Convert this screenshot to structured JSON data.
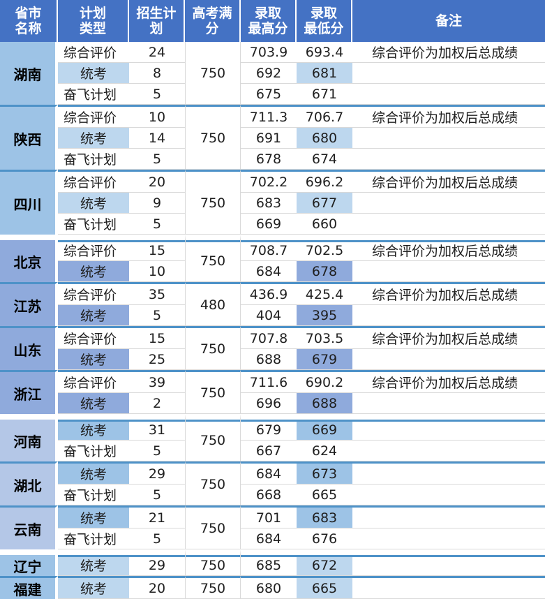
{
  "headers": {
    "province": [
      "省市",
      "名称"
    ],
    "plan_type": [
      "计划",
      "类型"
    ],
    "quota": [
      "招生计",
      "划"
    ],
    "full_score": [
      "高考满",
      "分"
    ],
    "max": [
      "录取",
      "最高分"
    ],
    "min": [
      "录取",
      "最低分"
    ],
    "note": "备注"
  },
  "rows": [
    {
      "province": "湖南",
      "group": "g-blue",
      "entries": [
        {
          "type": "综合评价",
          "quota": "24",
          "max": "703.9",
          "min": "693.4",
          "note": "综合评价为加权后总成绩",
          "hl": false
        },
        {
          "type": "统考",
          "quota": "8",
          "max": "692",
          "min": "681",
          "note": "",
          "hl": true
        },
        {
          "type": "奋飞计划",
          "quota": "5",
          "max": "675",
          "min": "671",
          "note": "",
          "hl": false
        }
      ],
      "full": "750"
    },
    {
      "province": "陕西",
      "group": "g-blue",
      "entries": [
        {
          "type": "综合评价",
          "quota": "10",
          "max": "711.3",
          "min": "706.7",
          "note": "综合评价为加权后总成绩",
          "hl": false
        },
        {
          "type": "统考",
          "quota": "14",
          "max": "691",
          "min": "680",
          "note": "",
          "hl": true
        },
        {
          "type": "奋飞计划",
          "quota": "5",
          "max": "678",
          "min": "674",
          "note": "",
          "hl": false
        }
      ],
      "full": "750"
    },
    {
      "province": "四川",
      "group": "g-blue",
      "entries": [
        {
          "type": "综合评价",
          "quota": "20",
          "max": "702.2",
          "min": "696.2",
          "note": "综合评价为加权后总成绩",
          "hl": false
        },
        {
          "type": "统考",
          "quota": "9",
          "max": "683",
          "min": "677",
          "note": "",
          "hl": true
        },
        {
          "type": "奋飞计划",
          "quota": "5",
          "max": "669",
          "min": "660",
          "note": "",
          "hl": false
        }
      ],
      "full": "750"
    },
    {
      "province": "北京",
      "group": "g-dark",
      "entries": [
        {
          "type": "综合评价",
          "quota": "15",
          "max": "708.7",
          "min": "702.5",
          "note": "综合评价为加权后总成绩",
          "hl": false
        },
        {
          "type": "统考",
          "quota": "10",
          "max": "684",
          "min": "678",
          "note": "",
          "hl": true
        }
      ],
      "full": "750"
    },
    {
      "province": "江苏",
      "group": "g-dark",
      "entries": [
        {
          "type": "综合评价",
          "quota": "35",
          "max": "436.9",
          "min": "425.4",
          "note": "综合评价为加权后总成绩",
          "hl": false
        },
        {
          "type": "统考",
          "quota": "5",
          "max": "404",
          "min": "395",
          "note": "",
          "hl": true
        }
      ],
      "full": "480"
    },
    {
      "province": "山东",
      "group": "g-dark",
      "entries": [
        {
          "type": "综合评价",
          "quota": "15",
          "max": "707.8",
          "min": "703.5",
          "note": "综合评价为加权后总成绩",
          "hl": false
        },
        {
          "type": "统考",
          "quota": "25",
          "max": "688",
          "min": "679",
          "note": "",
          "hl": true
        }
      ],
      "full": "750"
    },
    {
      "province": "浙江",
      "group": "g-dark",
      "entries": [
        {
          "type": "综合评价",
          "quota": "39",
          "max": "711.6",
          "min": "690.2",
          "note": "综合评价为加权后总成绩",
          "hl": false
        },
        {
          "type": "统考",
          "quota": "2",
          "max": "696",
          "min": "688",
          "note": "",
          "hl": true
        }
      ],
      "full": "750"
    },
    {
      "province": "河南",
      "group": "g-light",
      "entries": [
        {
          "type": "统考",
          "quota": "31",
          "max": "679",
          "min": "669",
          "note": "",
          "hl": true
        },
        {
          "type": "奋飞计划",
          "quota": "5",
          "max": "667",
          "min": "624",
          "note": "",
          "hl": false
        }
      ],
      "full": "750"
    },
    {
      "province": "湖北",
      "group": "g-light",
      "entries": [
        {
          "type": "统考",
          "quota": "29",
          "max": "684",
          "min": "673",
          "note": "",
          "hl": true
        },
        {
          "type": "奋飞计划",
          "quota": "5",
          "max": "668",
          "min": "665",
          "note": "",
          "hl": false
        }
      ],
      "full": "750"
    },
    {
      "province": "云南",
      "group": "g-light",
      "entries": [
        {
          "type": "统考",
          "quota": "21",
          "max": "701",
          "min": "683",
          "note": "",
          "hl": true
        },
        {
          "type": "奋飞计划",
          "quota": "5",
          "max": "684",
          "min": "676",
          "note": "",
          "hl": false
        }
      ],
      "full": "750"
    },
    {
      "province": "辽宁",
      "group": "g-sky",
      "entries": [
        {
          "type": "统考",
          "quota": "29",
          "max": "685",
          "min": "672",
          "note": "",
          "hl": true
        }
      ],
      "full": "750"
    },
    {
      "province": "福建",
      "group": "g-sky",
      "entries": [
        {
          "type": "统考",
          "quota": "20",
          "max": "680",
          "min": "665",
          "note": "",
          "hl": true
        }
      ],
      "full": "750"
    }
  ]
}
